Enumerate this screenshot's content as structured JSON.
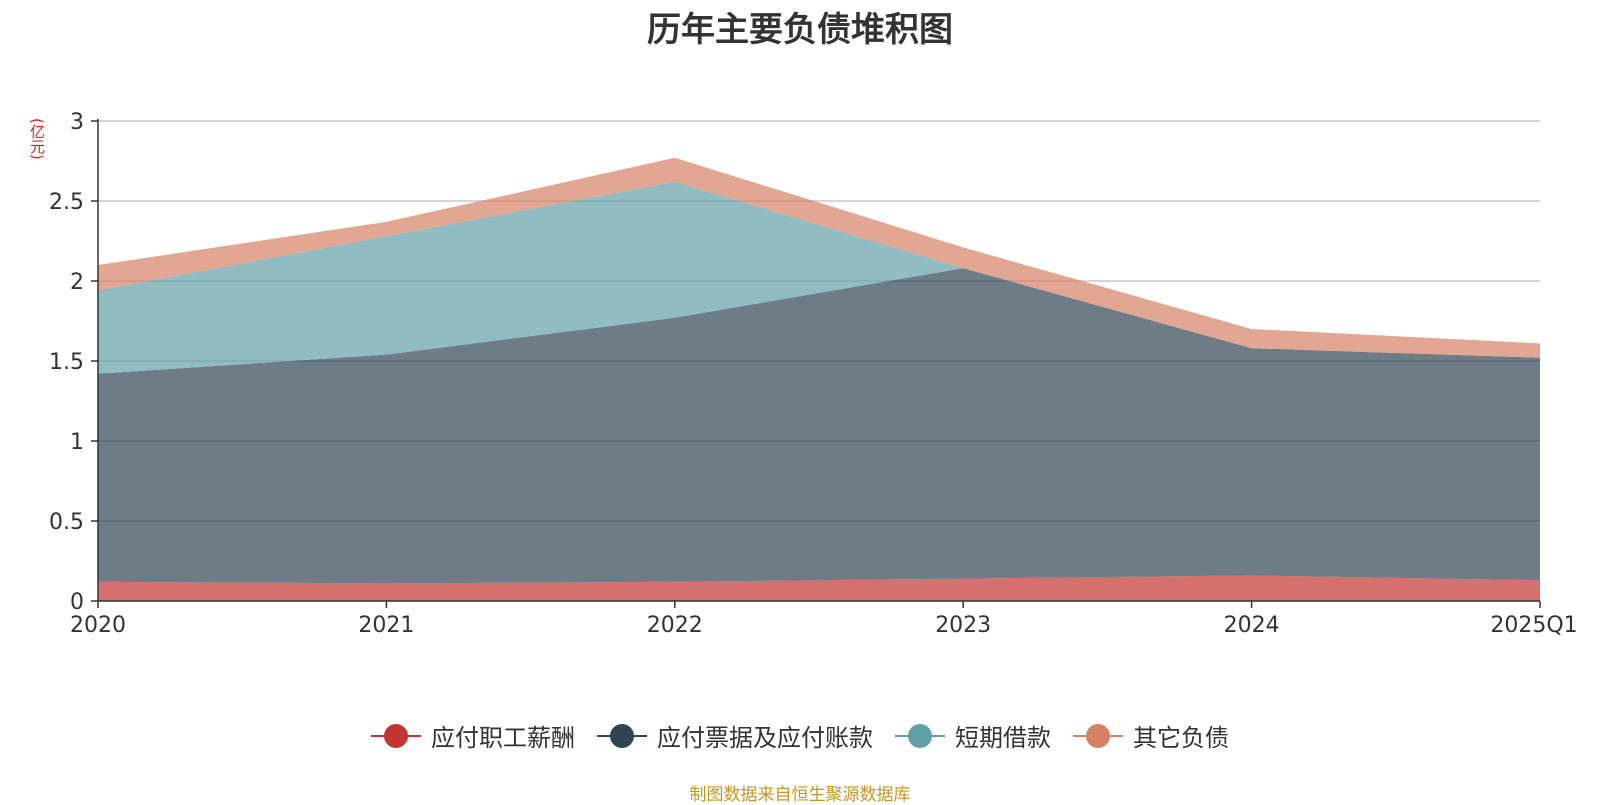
{
  "title": "历年主要负债堆积图",
  "unit_label": "(亿元)",
  "source": "制图数据来自恒生聚源数据库",
  "chart_data": {
    "type": "area",
    "stacked": true,
    "title": "历年主要负债堆积图",
    "ylabel": "(亿元)",
    "categories": [
      "2020",
      "2021",
      "2022",
      "2023",
      "2024",
      "2025Q1"
    ],
    "ylim": [
      0,
      3
    ],
    "yticks": [
      "0",
      "0.5",
      "1",
      "1.5",
      "2",
      "2.5",
      "3"
    ],
    "grid": true,
    "legend_position": "bottom",
    "series": [
      {
        "name": "应付职工薪酬",
        "color": "#c23531",
        "values": [
          0.12,
          0.11,
          0.12,
          0.14,
          0.16,
          0.13
        ]
      },
      {
        "name": "应付票据及应付账款",
        "color": "#2f4554",
        "values": [
          1.3,
          1.43,
          1.65,
          1.94,
          1.42,
          1.39
        ]
      },
      {
        "name": "短期借款",
        "color": "#61a0a8",
        "values": [
          0.52,
          0.74,
          0.85,
          0.0,
          0.0,
          0.0
        ]
      },
      {
        "name": "其它负债",
        "color": "#d48265",
        "values": [
          0.16,
          0.09,
          0.15,
          0.13,
          0.12,
          0.09
        ]
      }
    ]
  }
}
